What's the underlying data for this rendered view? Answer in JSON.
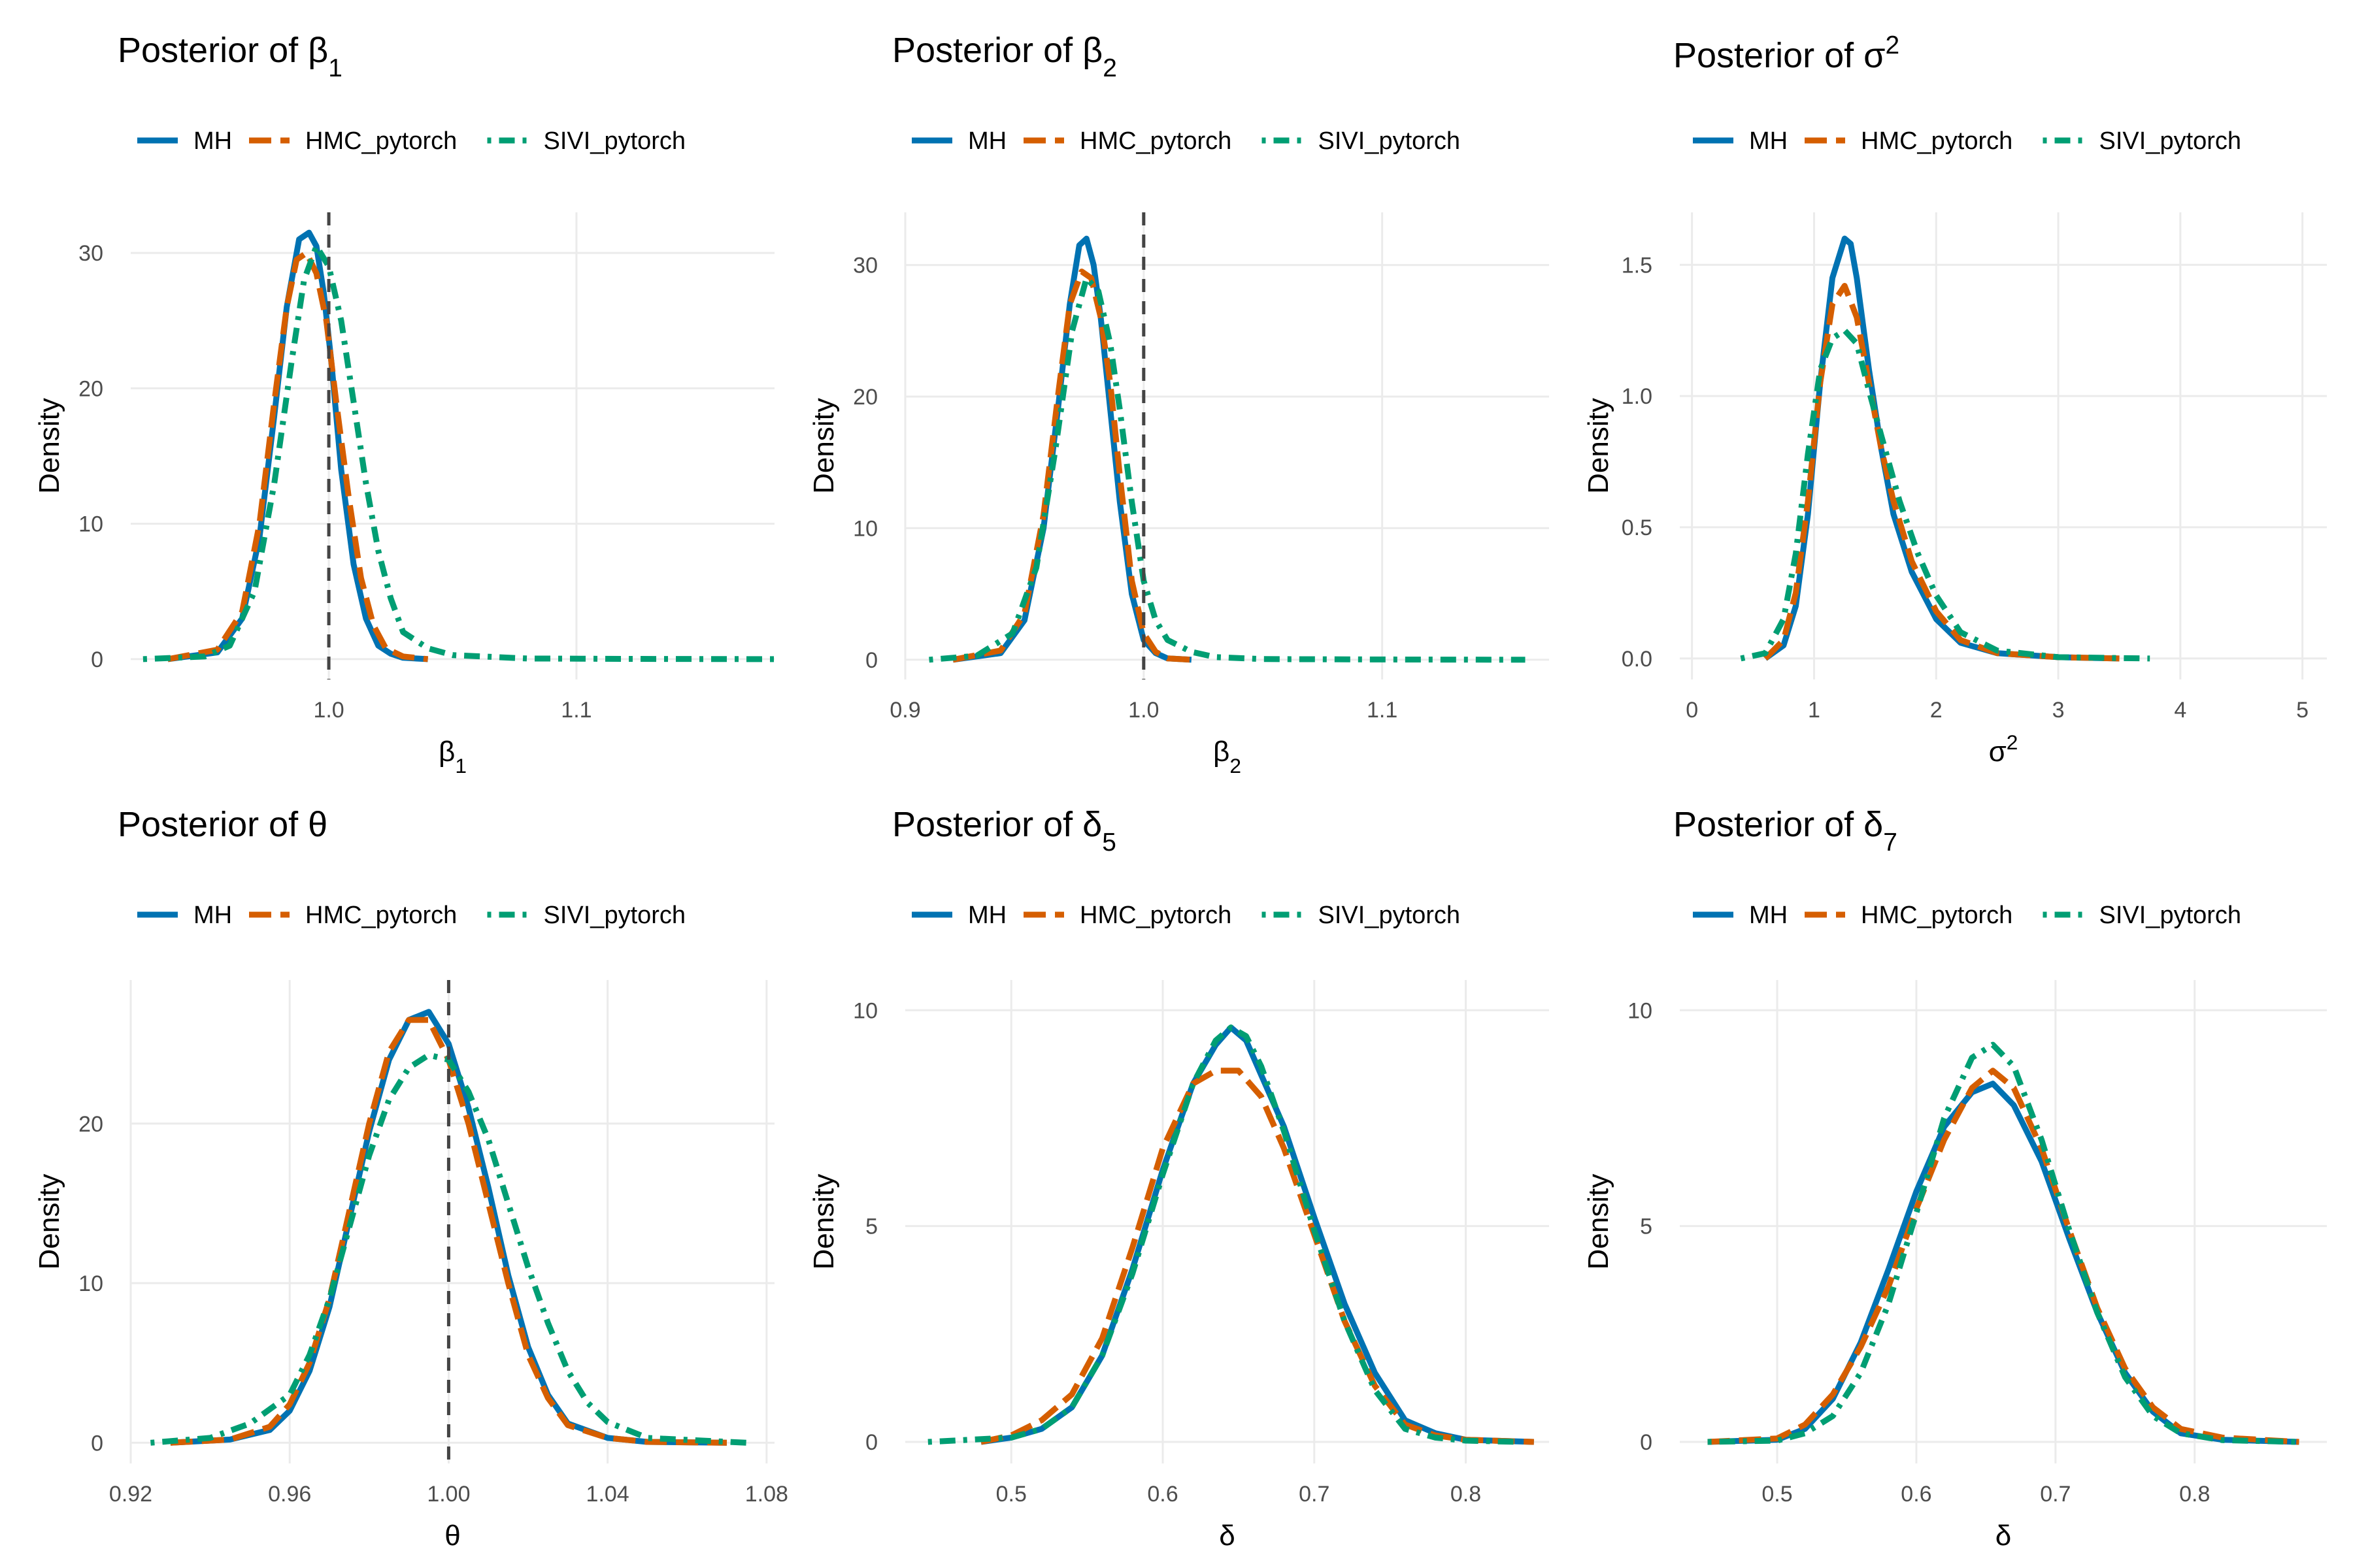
{
  "figure": {
    "legend_position": "top-left",
    "grid": true
  },
  "series_styles": [
    {
      "name": "MH",
      "color": "#0072B2",
      "dash": "solid"
    },
    {
      "name": "HMC_pytorch",
      "color": "#D55E00",
      "dash": "longdash"
    },
    {
      "name": "SIVI_pytorch",
      "color": "#009E73",
      "dash": "dotdash"
    }
  ],
  "reference_line_color": "#444444",
  "chart_data": [
    {
      "type": "line",
      "title_text": "Posterior of β",
      "title_sub": "1",
      "title_sup": "",
      "xlabel_text": "β",
      "xlabel_sub": "1",
      "xlabel_sup": "",
      "ylabel": "Density",
      "xlim": [
        0.92,
        1.18
      ],
      "ylim": [
        -1.5,
        33
      ],
      "xticks": [
        1.0,
        1.1
      ],
      "xtick_labels": [
        "1.0",
        "1.1"
      ],
      "yticks": [
        0,
        10,
        20,
        30
      ],
      "ytick_labels": [
        "0",
        "10",
        "20",
        "30"
      ],
      "ref_line": 1.0,
      "series": [
        {
          "name": "MH",
          "x": [
            0.935,
            0.955,
            0.965,
            0.972,
            0.978,
            0.983,
            0.988,
            0.992,
            0.995,
            0.998,
            1.001,
            1.005,
            1.01,
            1.015,
            1.02,
            1.025,
            1.03,
            1.04
          ],
          "values": [
            0,
            0.5,
            3,
            9,
            18,
            26,
            31,
            31.5,
            30.5,
            27,
            22,
            14,
            7,
            3,
            1,
            0.4,
            0.1,
            0
          ]
        },
        {
          "name": "HMC_pytorch",
          "x": [
            0.935,
            0.955,
            0.965,
            0.972,
            0.978,
            0.983,
            0.987,
            0.991,
            0.995,
            0.999,
            1.003,
            1.008,
            1.013,
            1.018,
            1.023,
            1.03,
            1.04
          ],
          "values": [
            0,
            0.7,
            3.5,
            10,
            19,
            26,
            29.5,
            30,
            28.5,
            25,
            19,
            12,
            6,
            2.5,
            0.8,
            0.2,
            0
          ]
        },
        {
          "name": "SIVI_pytorch",
          "x": [
            0.925,
            0.95,
            0.96,
            0.97,
            0.978,
            0.985,
            0.99,
            0.995,
            1.0,
            1.005,
            1.01,
            1.015,
            1.02,
            1.025,
            1.03,
            1.04,
            1.05,
            1.08,
            1.12,
            1.18
          ],
          "values": [
            0,
            0.2,
            1,
            5,
            13,
            22,
            28,
            30.5,
            29,
            25,
            19,
            13,
            8,
            4.5,
            2,
            0.8,
            0.3,
            0.05,
            0.02,
            0
          ]
        }
      ]
    },
    {
      "type": "line",
      "title_text": "Posterior of β",
      "title_sub": "2",
      "title_sup": "",
      "xlabel_text": "β",
      "xlabel_sub": "2",
      "xlabel_sup": "",
      "ylabel": "Density",
      "xlim": [
        0.9,
        1.17
      ],
      "ylim": [
        -1.5,
        34
      ],
      "xticks": [
        0.9,
        1.0,
        1.1
      ],
      "xtick_labels": [
        "0.9",
        "1.0",
        "1.1"
      ],
      "yticks": [
        0,
        10,
        20,
        30
      ],
      "ytick_labels": [
        "0",
        "10",
        "20",
        "30"
      ],
      "ref_line": 1.0,
      "series": [
        {
          "name": "MH",
          "x": [
            0.92,
            0.94,
            0.95,
            0.958,
            0.964,
            0.969,
            0.973,
            0.976,
            0.979,
            0.982,
            0.986,
            0.99,
            0.995,
            1.0,
            1.005,
            1.01,
            1.02
          ],
          "values": [
            0,
            0.5,
            3,
            10,
            19,
            27,
            31.5,
            32,
            30,
            26,
            19,
            12,
            5,
            1.5,
            0.5,
            0.1,
            0
          ]
        },
        {
          "name": "HMC_pytorch",
          "x": [
            0.92,
            0.94,
            0.95,
            0.958,
            0.964,
            0.969,
            0.974,
            0.978,
            0.982,
            0.986,
            0.99,
            0.995,
            1.0,
            1.005,
            1.01,
            1.02
          ],
          "values": [
            0,
            0.7,
            3.5,
            11,
            20,
            27,
            29.5,
            29,
            26,
            21,
            14,
            6,
            2,
            0.6,
            0.1,
            0
          ]
        },
        {
          "name": "SIVI_pytorch",
          "x": [
            0.91,
            0.93,
            0.945,
            0.955,
            0.963,
            0.97,
            0.976,
            0.981,
            0.986,
            0.99,
            0.995,
            1.0,
            1.005,
            1.01,
            1.02,
            1.03,
            1.05,
            1.1,
            1.16
          ],
          "values": [
            0,
            0.3,
            2,
            7,
            16,
            25,
            29,
            28,
            24,
            19,
            12,
            6,
            3,
            1.5,
            0.6,
            0.2,
            0.05,
            0.02,
            0
          ]
        }
      ]
    },
    {
      "type": "line",
      "title_text": "Posterior of σ",
      "title_sub": "",
      "title_sup": "2",
      "xlabel_text": "σ",
      "xlabel_sub": "",
      "xlabel_sup": "2",
      "ylabel": "Density",
      "xlim": [
        -0.1,
        5.2
      ],
      "ylim": [
        -0.08,
        1.7
      ],
      "xticks": [
        0,
        1,
        2,
        3,
        4,
        5
      ],
      "xtick_labels": [
        "0",
        "1",
        "2",
        "3",
        "4",
        "5"
      ],
      "yticks": [
        0.0,
        0.5,
        1.0,
        1.5
      ],
      "ytick_labels": [
        "0.0",
        "0.5",
        "1.0",
        "1.5"
      ],
      "ref_line": null,
      "series": [
        {
          "name": "MH",
          "x": [
            0.6,
            0.75,
            0.85,
            0.95,
            1.05,
            1.15,
            1.25,
            1.3,
            1.35,
            1.45,
            1.55,
            1.65,
            1.8,
            2.0,
            2.2,
            2.5,
            3.0,
            3.5
          ],
          "values": [
            0,
            0.05,
            0.2,
            0.55,
            1.05,
            1.45,
            1.6,
            1.58,
            1.45,
            1.1,
            0.8,
            0.55,
            0.33,
            0.15,
            0.06,
            0.02,
            0.005,
            0
          ]
        },
        {
          "name": "HMC_pytorch",
          "x": [
            0.6,
            0.75,
            0.85,
            0.95,
            1.05,
            1.15,
            1.25,
            1.35,
            1.45,
            1.55,
            1.65,
            1.8,
            2.0,
            2.2,
            2.5,
            3.0,
            3.5
          ],
          "values": [
            0,
            0.07,
            0.25,
            0.6,
            1.05,
            1.35,
            1.42,
            1.3,
            1.05,
            0.8,
            0.6,
            0.37,
            0.18,
            0.07,
            0.02,
            0.005,
            0
          ]
        },
        {
          "name": "SIVI_pytorch",
          "x": [
            0.4,
            0.6,
            0.75,
            0.85,
            0.95,
            1.05,
            1.15,
            1.25,
            1.35,
            1.45,
            1.55,
            1.7,
            1.85,
            2.0,
            2.2,
            2.5,
            3.0,
            3.75
          ],
          "values": [
            0,
            0.02,
            0.15,
            0.4,
            0.78,
            1.1,
            1.22,
            1.25,
            1.2,
            1.02,
            0.85,
            0.6,
            0.4,
            0.24,
            0.1,
            0.03,
            0.005,
            0
          ]
        }
      ]
    },
    {
      "type": "line",
      "title_text": "Posterior of θ",
      "title_sub": "",
      "title_sup": "",
      "xlabel_text": "θ",
      "xlabel_sub": "",
      "xlabel_sup": "",
      "ylabel": "Density",
      "xlim": [
        0.92,
        1.082
      ],
      "ylim": [
        -1.3,
        29
      ],
      "xticks": [
        0.92,
        0.96,
        1.0,
        1.04,
        1.08
      ],
      "xtick_labels": [
        "0.92",
        "0.96",
        "1.00",
        "1.04",
        "1.08"
      ],
      "yticks": [
        0,
        10,
        20
      ],
      "ytick_labels": [
        "0",
        "10",
        "20"
      ],
      "ref_line": 1.0,
      "series": [
        {
          "name": "MH",
          "x": [
            0.93,
            0.945,
            0.955,
            0.96,
            0.965,
            0.97,
            0.975,
            0.98,
            0.985,
            0.99,
            0.995,
            1.0,
            1.005,
            1.01,
            1.015,
            1.02,
            1.025,
            1.03,
            1.04,
            1.05,
            1.07
          ],
          "values": [
            0,
            0.2,
            0.8,
            2,
            4.5,
            8.5,
            14,
            19.5,
            24,
            26.5,
            27,
            25,
            21,
            16,
            10.5,
            6,
            3,
            1.2,
            0.3,
            0.05,
            0
          ]
        },
        {
          "name": "HMC_pytorch",
          "x": [
            0.93,
            0.945,
            0.955,
            0.96,
            0.965,
            0.97,
            0.975,
            0.98,
            0.985,
            0.99,
            0.995,
            1.0,
            1.005,
            1.01,
            1.015,
            1.02,
            1.025,
            1.03,
            1.04,
            1.05,
            1.07
          ],
          "values": [
            0,
            0.2,
            1,
            2.4,
            5,
            9,
            14.5,
            20,
            24.5,
            26.5,
            26.5,
            24,
            20,
            15,
            10,
            5.5,
            2.8,
            1.1,
            0.3,
            0.05,
            0
          ]
        },
        {
          "name": "SIVI_pytorch",
          "x": [
            0.925,
            0.94,
            0.95,
            0.96,
            0.965,
            0.97,
            0.975,
            0.98,
            0.985,
            0.99,
            0.995,
            1.0,
            1.005,
            1.01,
            1.015,
            1.02,
            1.025,
            1.03,
            1.035,
            1.04,
            1.05,
            1.075
          ],
          "values": [
            0,
            0.3,
            1.2,
            3,
            5.5,
            9,
            13.5,
            18,
            21.5,
            23.5,
            24.3,
            24,
            22,
            19,
            15,
            11,
            7.5,
            4.5,
            2.5,
            1.3,
            0.3,
            0
          ]
        }
      ]
    },
    {
      "type": "line",
      "title_text": "Posterior of δ",
      "title_sub": "5",
      "title_sup": "",
      "xlabel_text": "δ",
      "xlabel_sub": "",
      "xlabel_sup": "",
      "ylabel": "Density",
      "xlim": [
        0.43,
        0.855
      ],
      "ylim": [
        -0.5,
        10.7
      ],
      "xticks": [
        0.5,
        0.6,
        0.7,
        0.8
      ],
      "xtick_labels": [
        "0.5",
        "0.6",
        "0.7",
        "0.8"
      ],
      "yticks": [
        0,
        5,
        10
      ],
      "ytick_labels": [
        "0",
        "5",
        "10"
      ],
      "ref_line": null,
      "series": [
        {
          "name": "MH",
          "x": [
            0.48,
            0.5,
            0.52,
            0.54,
            0.56,
            0.58,
            0.6,
            0.62,
            0.635,
            0.645,
            0.655,
            0.665,
            0.68,
            0.7,
            0.72,
            0.74,
            0.76,
            0.78,
            0.8,
            0.845
          ],
          "values": [
            0,
            0.1,
            0.3,
            0.8,
            2,
            4,
            6.3,
            8.3,
            9.2,
            9.6,
            9.3,
            8.5,
            7.3,
            5.2,
            3.2,
            1.6,
            0.5,
            0.2,
            0.05,
            0
          ]
        },
        {
          "name": "HMC_pytorch",
          "x": [
            0.48,
            0.5,
            0.52,
            0.54,
            0.56,
            0.58,
            0.6,
            0.62,
            0.635,
            0.65,
            0.665,
            0.68,
            0.7,
            0.72,
            0.74,
            0.76,
            0.78,
            0.8,
            0.845
          ],
          "values": [
            0,
            0.15,
            0.5,
            1.1,
            2.4,
            4.5,
            6.8,
            8.3,
            8.6,
            8.6,
            8,
            6.8,
            4.8,
            2.8,
            1.3,
            0.4,
            0.15,
            0.05,
            0
          ]
        },
        {
          "name": "SIVI_pytorch",
          "x": [
            0.445,
            0.5,
            0.52,
            0.54,
            0.56,
            0.58,
            0.6,
            0.62,
            0.635,
            0.645,
            0.655,
            0.665,
            0.68,
            0.7,
            0.72,
            0.74,
            0.76,
            0.78,
            0.8,
            0.835
          ],
          "values": [
            0,
            0.1,
            0.3,
            0.8,
            2,
            3.9,
            6.2,
            8.3,
            9.3,
            9.6,
            9.4,
            8.7,
            7.2,
            4.9,
            2.8,
            1.2,
            0.3,
            0.1,
            0.03,
            0
          ]
        }
      ]
    },
    {
      "type": "line",
      "title_text": "Posterior of δ",
      "title_sub": "7",
      "title_sup": "",
      "xlabel_text": "δ",
      "xlabel_sub": "",
      "xlabel_sup": "",
      "ylabel": "Density",
      "xlim": [
        0.43,
        0.895
      ],
      "ylim": [
        -0.5,
        10.7
      ],
      "xticks": [
        0.5,
        0.6,
        0.7,
        0.8
      ],
      "xtick_labels": [
        "0.5",
        "0.6",
        "0.7",
        "0.8"
      ],
      "yticks": [
        0,
        5,
        10
      ],
      "ytick_labels": [
        "0",
        "5",
        "10"
      ],
      "ref_line": null,
      "series": [
        {
          "name": "MH",
          "x": [
            0.45,
            0.5,
            0.52,
            0.54,
            0.56,
            0.58,
            0.6,
            0.62,
            0.64,
            0.655,
            0.67,
            0.69,
            0.71,
            0.73,
            0.75,
            0.77,
            0.79,
            0.82,
            0.875
          ],
          "values": [
            0,
            0.05,
            0.3,
            1,
            2.3,
            4,
            5.8,
            7.3,
            8.1,
            8.3,
            7.8,
            6.5,
            4.7,
            3,
            1.6,
            0.7,
            0.2,
            0.05,
            0
          ]
        },
        {
          "name": "HMC_pytorch",
          "x": [
            0.45,
            0.5,
            0.52,
            0.54,
            0.56,
            0.58,
            0.6,
            0.62,
            0.64,
            0.655,
            0.67,
            0.69,
            0.71,
            0.73,
            0.75,
            0.77,
            0.79,
            0.82,
            0.875
          ],
          "values": [
            0,
            0.08,
            0.4,
            1.1,
            2.2,
            3.6,
            5.4,
            7,
            8.2,
            8.6,
            8.2,
            6.8,
            4.9,
            3.1,
            1.7,
            0.8,
            0.3,
            0.1,
            0
          ]
        },
        {
          "name": "SIVI_pytorch",
          "x": [
            0.45,
            0.5,
            0.52,
            0.54,
            0.56,
            0.58,
            0.6,
            0.62,
            0.64,
            0.655,
            0.67,
            0.69,
            0.71,
            0.73,
            0.75,
            0.77,
            0.79,
            0.82,
            0.875
          ],
          "values": [
            0,
            0.03,
            0.2,
            0.6,
            1.6,
            3.2,
            5.3,
            7.5,
            8.9,
            9.2,
            8.7,
            7,
            4.9,
            3,
            1.5,
            0.6,
            0.2,
            0.04,
            0
          ]
        }
      ]
    }
  ]
}
